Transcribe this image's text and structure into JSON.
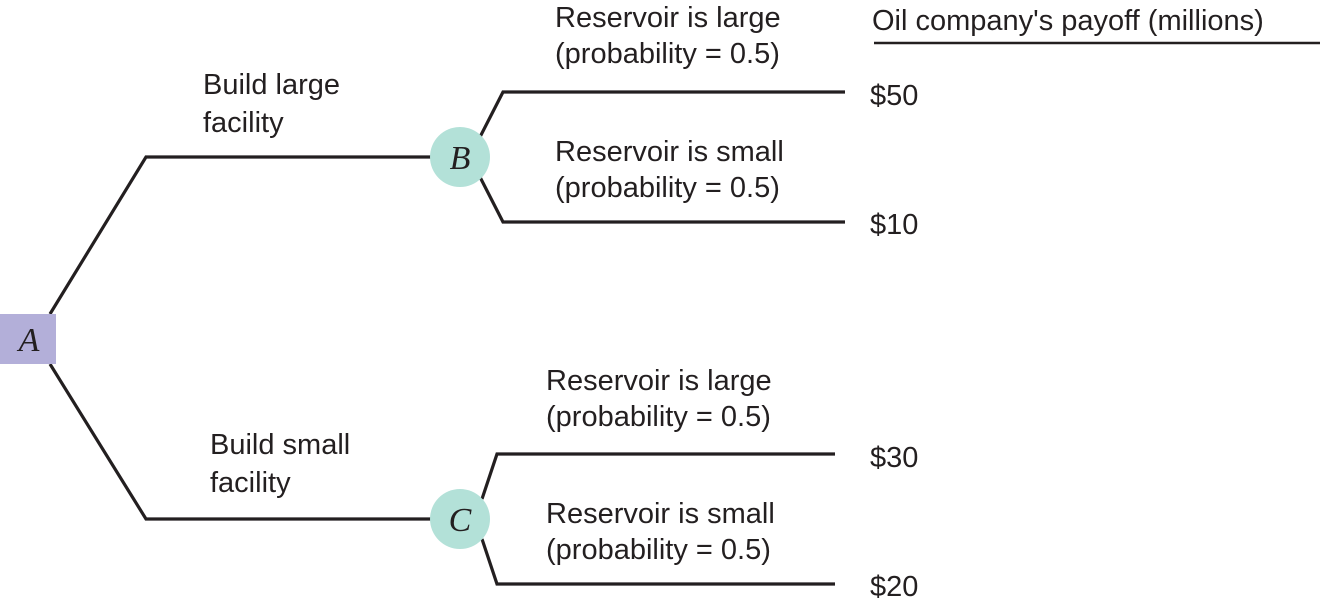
{
  "header": {
    "payoff_title": "Oil company's payoff (millions)"
  },
  "nodes": {
    "root": {
      "letter": "A",
      "color": "#b3afd9"
    },
    "large_chance": {
      "letter": "B",
      "color": "#b3e1d8"
    },
    "small_chance": {
      "letter": "C",
      "color": "#b3e1d8"
    }
  },
  "decisions": {
    "large": {
      "line1": "Build large",
      "line2": "facility"
    },
    "small": {
      "line1": "Build small",
      "line2": "facility"
    }
  },
  "outcomes": {
    "large_facility": [
      {
        "line1": "Reservoir is large",
        "line2": "(probability = 0.5)",
        "payoff": "$50"
      },
      {
        "line1": "Reservoir is small",
        "line2": "(probability = 0.5)",
        "payoff": "$10"
      }
    ],
    "small_facility": [
      {
        "line1": "Reservoir is large",
        "line2": "(probability = 0.5)",
        "payoff": "$30"
      },
      {
        "line1": "Reservoir is small",
        "line2": "(probability = 0.5)",
        "payoff": "$20"
      }
    ]
  }
}
